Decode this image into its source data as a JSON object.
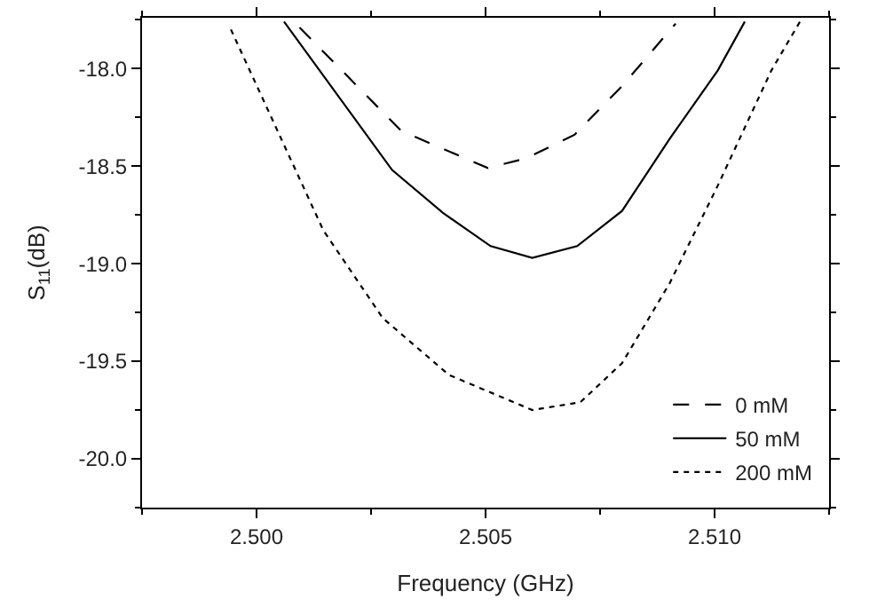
{
  "chart_data": {
    "type": "line",
    "xlabel": "Frequency (GHz)",
    "ylabel": "S$_{11}$(dB)",
    "xlim": [
      2.4975,
      2.5125
    ],
    "ylim": [
      -20.25,
      -17.74
    ],
    "xticks": [
      {
        "value": 2.5,
        "label": "2.500"
      },
      {
        "value": 2.505,
        "label": "2.505"
      },
      {
        "value": 2.51,
        "label": "2.510"
      }
    ],
    "yticks": [
      {
        "value": -20,
        "label": "-20.0"
      },
      {
        "value": -19.5,
        "label": "-19.5"
      },
      {
        "value": -19,
        "label": "-19.0"
      },
      {
        "value": -18.5,
        "label": "-18.5"
      },
      {
        "value": -18,
        "label": "-18.0"
      }
    ],
    "legend": "bottom right",
    "marker": "none",
    "series": [
      {
        "name": "0 mM",
        "color": "#000000",
        "line_style": "dashed",
        "x": [
          2.50094,
          2.50316,
          2.50505,
          2.50589,
          2.50694,
          2.50798,
          2.50915
        ],
        "values": [
          -17.79,
          -18.32,
          -18.51,
          -18.46,
          -18.34,
          -18.09,
          -17.77
        ]
      },
      {
        "name": "50 mM",
        "color": "#000000",
        "line_style": "solid",
        "x": [
          2.5006,
          2.50296,
          2.50407,
          2.50511,
          2.50602,
          2.507,
          2.50798,
          2.50902,
          2.51007,
          2.51066
        ],
        "values": [
          -17.76,
          -18.52,
          -18.74,
          -18.91,
          -18.97,
          -18.91,
          -18.73,
          -18.36,
          -18.01,
          -17.76
        ]
      },
      {
        "name": "200 mM",
        "color": "#000000",
        "line_style": "dotted",
        "x": [
          2.49944,
          2.50042,
          2.50146,
          2.50276,
          2.5042,
          2.50602,
          2.50707,
          2.50798,
          2.50902,
          2.51007,
          2.51124,
          2.51189
        ],
        "values": [
          -17.8,
          -18.3,
          -18.83,
          -19.28,
          -19.57,
          -19.75,
          -19.71,
          -19.51,
          -19.1,
          -18.6,
          -18.01,
          -17.75
        ]
      }
    ]
  }
}
